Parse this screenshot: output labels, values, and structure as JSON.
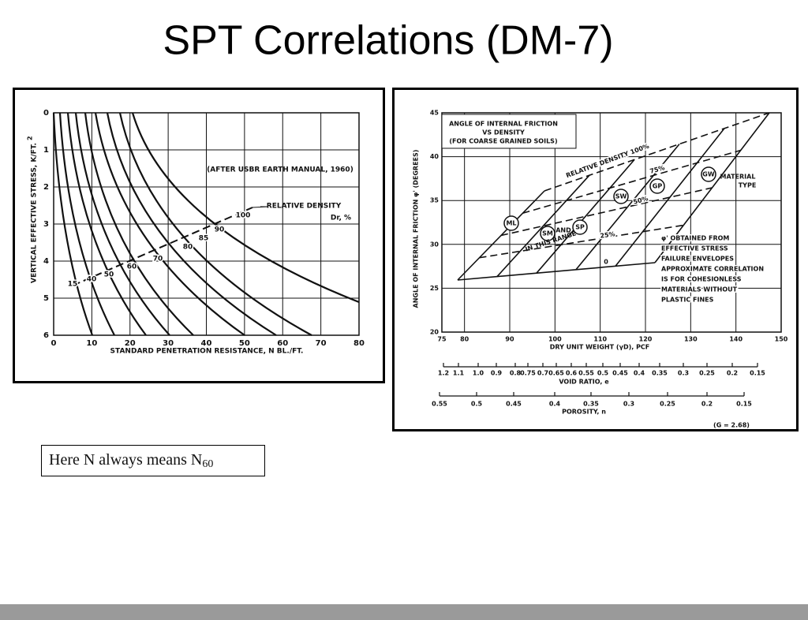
{
  "title": "SPT Correlations (DM-7)",
  "note": {
    "text": "Here N always means N",
    "subscript": "60"
  },
  "left_figure": {
    "y_label": "VERTICAL EFFECTIVE STRESS, K/FT.",
    "y_label_sup": "2",
    "x_label": "STANDARD PENETRATION RESISTANCE, N BL./FT.",
    "x_ticks": [
      "0",
      "10",
      "20",
      "30",
      "40",
      "50",
      "60",
      "70",
      "80"
    ],
    "y_ticks": [
      "0",
      "1",
      "2",
      "3",
      "4",
      "5",
      "6"
    ],
    "source": "(AFTER USBR EARTH MANUAL, 1960)",
    "legend": "RELATIVE DENSITY",
    "legend_symbol": "Dr, %",
    "density_labels": [
      "15",
      "40",
      "50",
      "60",
      "70",
      "80",
      "85",
      "90",
      "100"
    ]
  },
  "right_figure": {
    "title_lines": [
      "ANGLE OF INTERNAL FRICTION",
      "VS DENSITY",
      "(FOR COARSE GRAINED SOILS)"
    ],
    "y_label": "ANGLE OF INTERNAL FRICTION φ' (DEGREES)",
    "x_label": "DRY UNIT WEIGHT (γD), PCF",
    "x_ticks": [
      "75",
      "80",
      "90",
      "100",
      "110",
      "120",
      "130",
      "140",
      "150"
    ],
    "y_ticks": [
      "20",
      "25",
      "30",
      "35",
      "40",
      "45"
    ],
    "void_ratio_label": "VOID RATIO, e",
    "void_ratio_ticks": [
      "1.2",
      "1.1",
      "1.0",
      "0.9",
      "0.8",
      "0.75",
      "0.7",
      "0.65",
      "0.6",
      "0.55",
      "0.5",
      "0.45",
      "0.4",
      "0.35",
      "0.3",
      "0.25",
      "0.2",
      "0.15"
    ],
    "porosity_label": "POROSITY, n",
    "porosity_ticks": [
      "0.55",
      "0.5",
      "0.45",
      "0.4",
      "0.35",
      "0.3",
      "0.25",
      "0.2",
      "0.15"
    ],
    "specific_gravity": "(G = 2.68)",
    "soil_types": [
      "ML",
      "SM",
      "SP",
      "SW",
      "GP",
      "GW"
    ],
    "material_type": [
      "MATERIAL",
      "TYPE"
    ],
    "density_labels": [
      "RELATIVE DENSITY 100%",
      "75%",
      "50%",
      "25%",
      "0"
    ],
    "and_text": "AND",
    "range_text": "IN THIS RANGE",
    "notes": [
      "φ' OBTAINED FROM",
      "EFFECTIVE STRESS",
      "FAILURE ENVELOPES",
      "APPROXIMATE CORRELATION",
      "IS FOR COHESIONLESS",
      "MATERIALS WITHOUT",
      "PLASTIC FINES"
    ]
  }
}
